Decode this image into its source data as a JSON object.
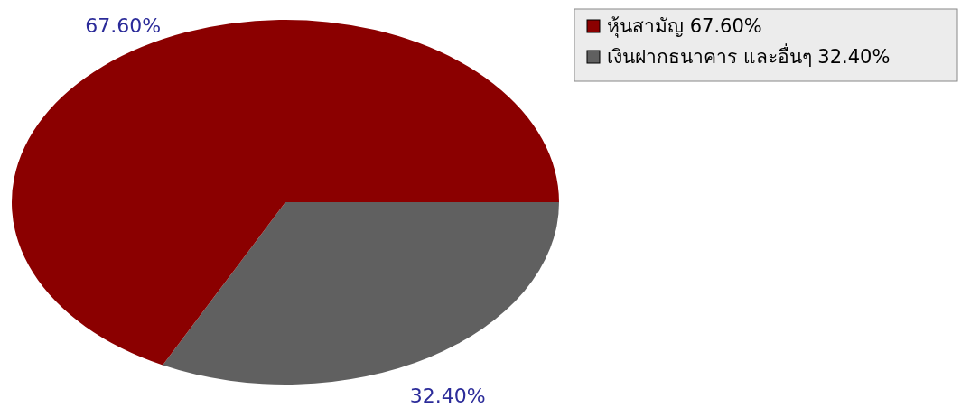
{
  "chart_data": {
    "type": "pie",
    "categories": [
      "หุ้นสามัญ",
      "เงินฝากธนาคาร และอื่นๆ"
    ],
    "values": [
      67.6,
      32.4
    ],
    "colors": [
      "#8b0000",
      "#606060"
    ],
    "value_labels": [
      "67.60%",
      "32.40%"
    ],
    "legend": "top right"
  }
}
